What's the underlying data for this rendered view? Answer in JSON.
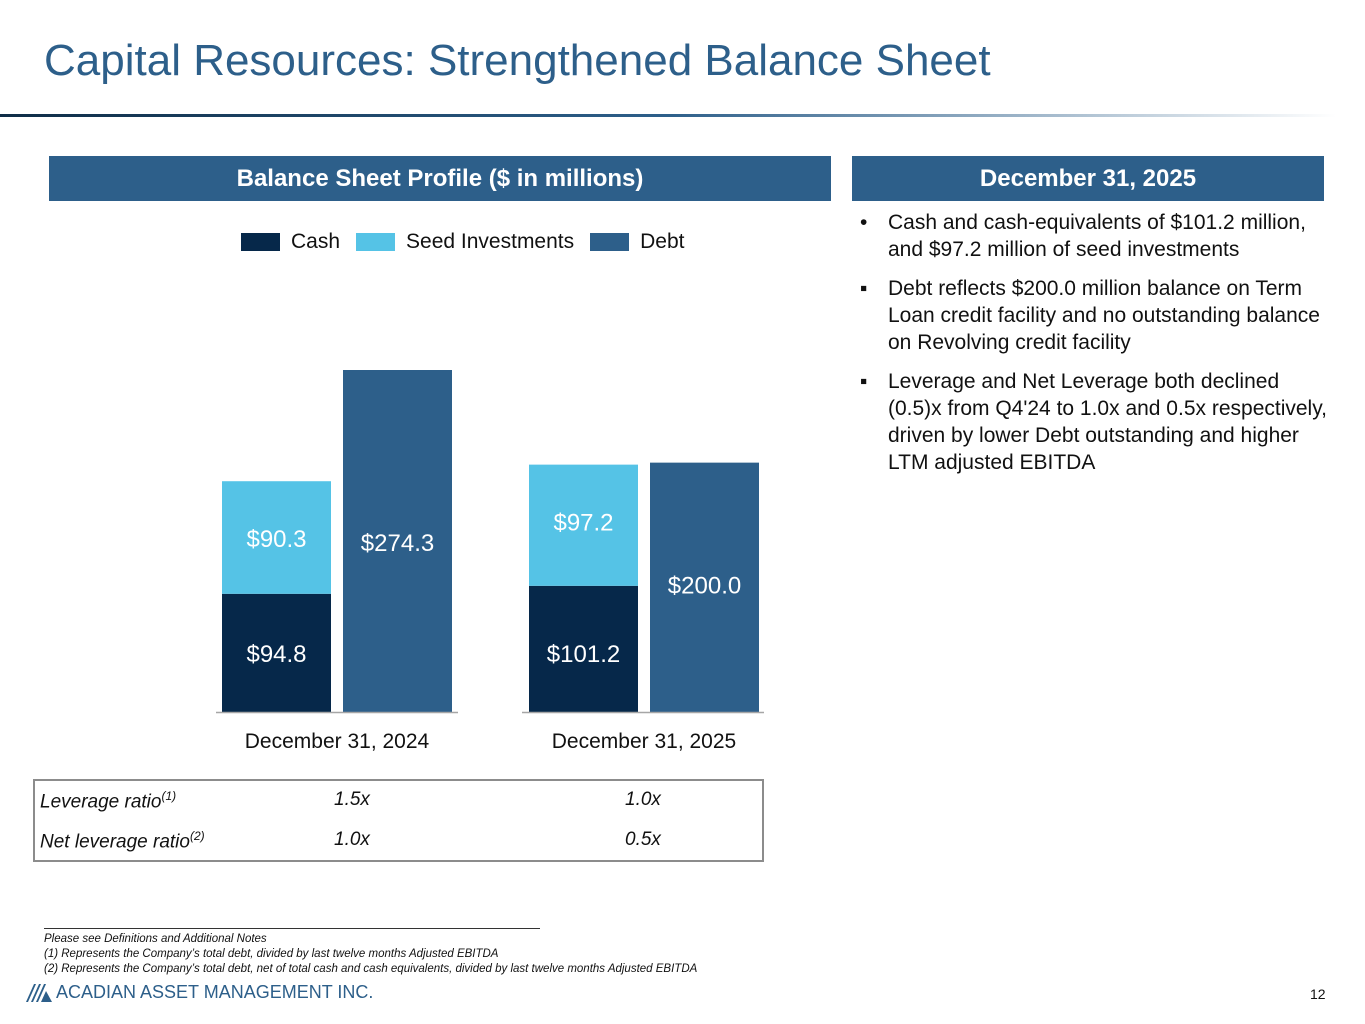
{
  "title": "Capital Resources: Strengthened Balance Sheet",
  "left_panel": {
    "header": "Balance Sheet Profile ($ in millions)"
  },
  "right_panel": {
    "header": "December 31, 2025",
    "bullets": [
      {
        "marker": "•",
        "text": "Cash and cash-equivalents of $101.2 million, and $97.2 million of seed investments"
      },
      {
        "marker": "▪",
        "text": "Debt reflects $200.0 million balance on Term Loan credit facility and no outstanding balance on Revolving credit facility"
      },
      {
        "marker": "▪",
        "text": "Leverage and Net Leverage both declined (0.5)x from Q4'24 to 1.0x and 0.5x respectively, driven by lower Debt outstanding and higher LTM adjusted EBITDA"
      }
    ]
  },
  "colors": {
    "cash": "#06284a",
    "seed": "#55c3e6",
    "debt": "#2d5f8a",
    "accent": "#2d5f8a"
  },
  "chart_data": {
    "type": "bar",
    "title": "Balance Sheet Profile ($ in millions)",
    "stacked_grouped": true,
    "categories": [
      "December 31, 2024",
      "December 31, 2025"
    ],
    "series": [
      {
        "name": "Cash",
        "stack": "assets",
        "values": [
          94.8,
          101.2
        ],
        "labels": [
          "$94.8",
          "$101.2"
        ]
      },
      {
        "name": "Seed Investments",
        "stack": "assets",
        "values": [
          90.3,
          97.2
        ],
        "labels": [
          "$90.3",
          "$97.2"
        ]
      },
      {
        "name": "Debt",
        "stack": "debt",
        "values": [
          274.3,
          200.0
        ],
        "labels": [
          "$274.3",
          "$200.0"
        ]
      }
    ],
    "ylim": [
      0,
      274.3
    ],
    "grid": false,
    "legend_position": "top",
    "xlabel": "",
    "ylabel": ""
  },
  "ratios": {
    "rows": [
      {
        "label": "Leverage ratio",
        "sup": "(1)",
        "values": [
          "1.5x",
          "1.0x"
        ]
      },
      {
        "label": "Net leverage ratio",
        "sup": "(2)",
        "values": [
          "1.0x",
          "0.5x"
        ]
      }
    ]
  },
  "footnotes": [
    "Please see Definitions and Additional Notes",
    "(1) Represents the Company’s total debt, divided by last twelve months Adjusted EBITDA",
    "(2) Represents the Company’s total debt, net of total cash and cash equivalents, divided by last twelve months Adjusted EBITDA"
  ],
  "company": "ACADIAN ASSET MANAGEMENT INC.",
  "page_number": "12"
}
